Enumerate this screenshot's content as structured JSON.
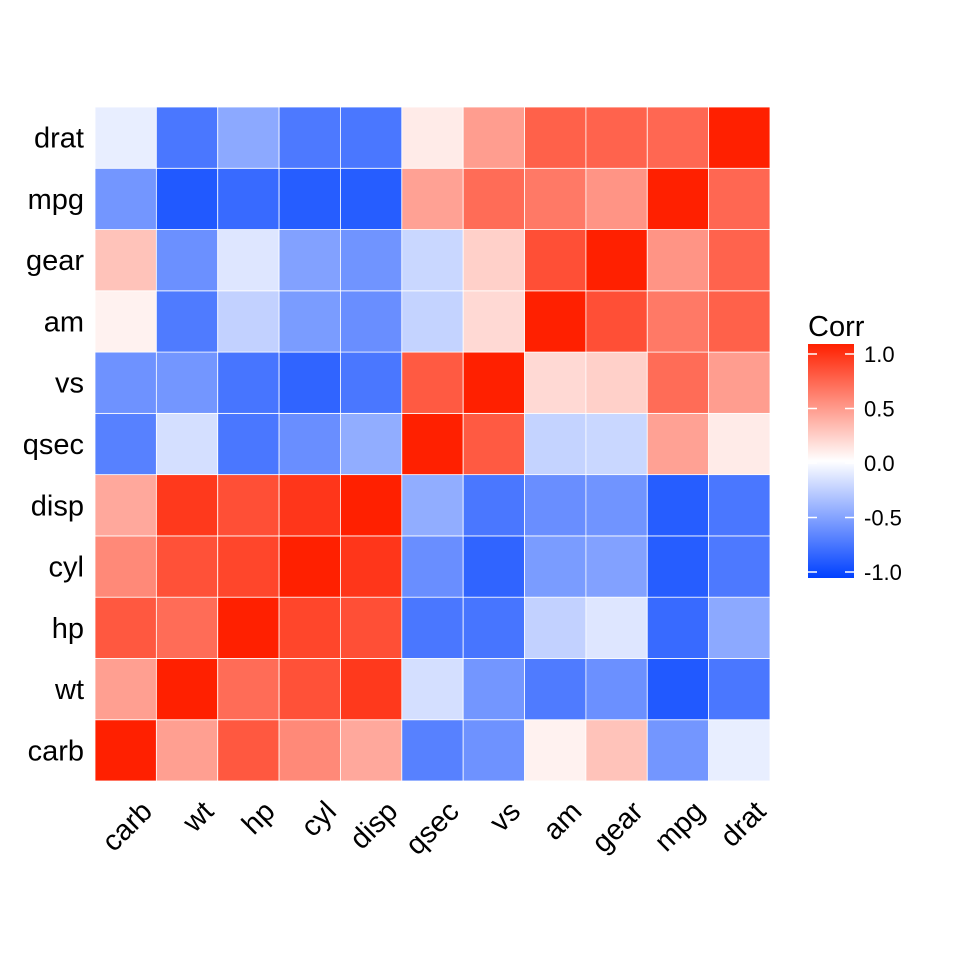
{
  "chart_data": {
    "type": "heatmap",
    "title": "",
    "xlabel": "",
    "ylabel": "",
    "x_categories": [
      "carb",
      "wt",
      "hp",
      "cyl",
      "disp",
      "qsec",
      "vs",
      "am",
      "gear",
      "mpg",
      "drat"
    ],
    "y_categories": [
      "carb",
      "wt",
      "hp",
      "cyl",
      "disp",
      "qsec",
      "vs",
      "am",
      "gear",
      "mpg",
      "drat"
    ],
    "values": [
      [
        1.0,
        0.43,
        0.75,
        0.53,
        0.39,
        -0.66,
        -0.57,
        0.06,
        0.27,
        -0.55,
        -0.09
      ],
      [
        0.43,
        1.0,
        0.66,
        0.78,
        0.89,
        -0.17,
        -0.55,
        -0.69,
        -0.58,
        -0.87,
        -0.71
      ],
      [
        0.75,
        0.66,
        1.0,
        0.83,
        0.79,
        -0.71,
        -0.72,
        -0.24,
        -0.13,
        -0.78,
        -0.45
      ],
      [
        0.53,
        0.78,
        0.83,
        1.0,
        0.9,
        -0.59,
        -0.81,
        -0.52,
        -0.49,
        -0.85,
        -0.7
      ],
      [
        0.39,
        0.89,
        0.79,
        0.9,
        1.0,
        -0.43,
        -0.71,
        -0.59,
        -0.56,
        -0.85,
        -0.71
      ],
      [
        -0.66,
        -0.17,
        -0.71,
        -0.59,
        -0.43,
        1.0,
        0.74,
        -0.23,
        -0.21,
        0.42,
        0.09
      ],
      [
        -0.57,
        -0.55,
        -0.72,
        -0.81,
        -0.71,
        0.74,
        1.0,
        0.17,
        0.21,
        0.66,
        0.44
      ],
      [
        0.06,
        -0.69,
        -0.24,
        -0.52,
        -0.59,
        -0.23,
        0.17,
        1.0,
        0.79,
        0.6,
        0.71
      ],
      [
        0.27,
        -0.58,
        -0.13,
        -0.49,
        -0.56,
        -0.21,
        0.21,
        0.79,
        1.0,
        0.48,
        0.7
      ],
      [
        -0.55,
        -0.87,
        -0.78,
        -0.85,
        -0.85,
        0.42,
        0.66,
        0.6,
        0.48,
        1.0,
        0.68
      ],
      [
        -0.09,
        -0.71,
        -0.45,
        -0.7,
        -0.71,
        0.09,
        0.44,
        0.71,
        0.7,
        0.68,
        1.0
      ]
    ],
    "value_range": [
      -1,
      1
    ],
    "grid": true,
    "legend": {
      "title": "Corr",
      "placement": "right",
      "ticks": [
        1.0,
        0.5,
        0.0,
        -0.5,
        -1.0
      ],
      "tick_labels": [
        "1.0",
        "0.5",
        "0.0",
        "-0.5",
        "-1.0"
      ]
    },
    "colors": {
      "low": "#0040ff",
      "mid": "#ffffff",
      "high": "#ff2000",
      "tile_border": "#ffffff",
      "gridline": "#ebebeb"
    }
  }
}
